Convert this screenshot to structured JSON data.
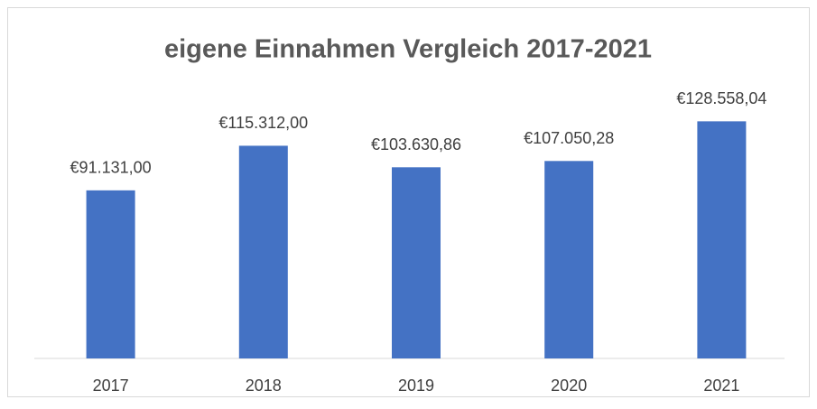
{
  "chart_data": {
    "type": "bar",
    "title": "eigene Einnahmen Vergleich 2017-2021",
    "categories": [
      "2017",
      "2018",
      "2019",
      "2020",
      "2021"
    ],
    "values": [
      91131.0,
      115312.0,
      103630.86,
      107050.28,
      128558.04
    ],
    "value_labels": [
      "€91.131,00",
      "€115.312,00",
      "€103.630,86",
      "€107.050,28",
      "€128.558,04"
    ],
    "color": "#4472c4",
    "ylim": [
      0,
      140000
    ]
  }
}
